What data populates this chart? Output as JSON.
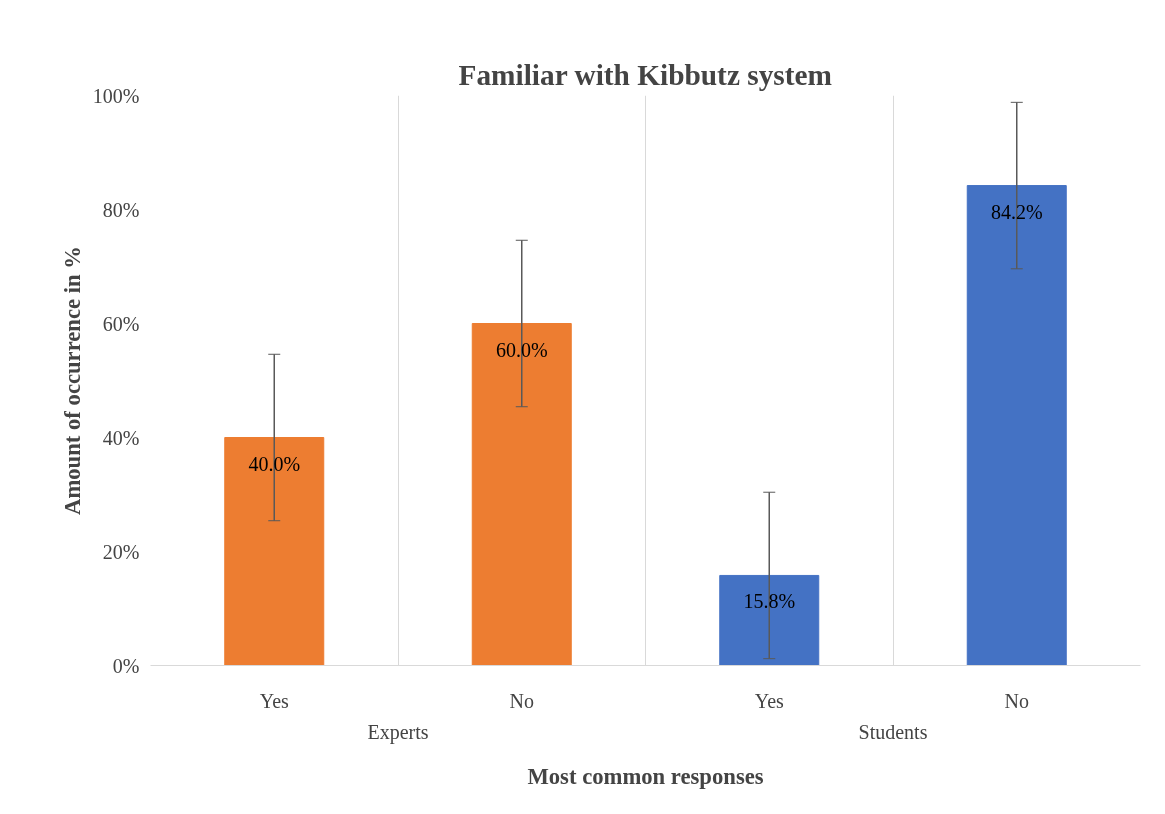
{
  "chart_data": {
    "type": "bar",
    "title": "Familiar with Kibbutz system",
    "xlabel": "Most common responses",
    "ylabel": "Amount of occurrence in %",
    "categories": [
      "Yes",
      "No",
      "Yes",
      "No"
    ],
    "values": [
      40.0,
      60.0,
      15.8,
      84.2
    ],
    "colors": [
      "#ed7d31",
      "#ed7d31",
      "#4472c4",
      "#4472c4"
    ],
    "errors": [
      14.6,
      14.6,
      14.6,
      14.6
    ],
    "value_labels": [
      "40.0%",
      "60.0%",
      "15.8%",
      "84.2%"
    ],
    "annotations": [
      "Experts",
      "Students"
    ],
    "ylim": [
      0,
      100
    ],
    "yticks": [
      {
        "value": 0,
        "label": "0%"
      },
      {
        "value": 20,
        "label": "20%"
      },
      {
        "value": 40,
        "label": "40%"
      },
      {
        "value": 60,
        "label": "60%"
      },
      {
        "value": 80,
        "label": "80%"
      },
      {
        "value": 100,
        "label": "100%"
      }
    ],
    "grid": "x"
  }
}
